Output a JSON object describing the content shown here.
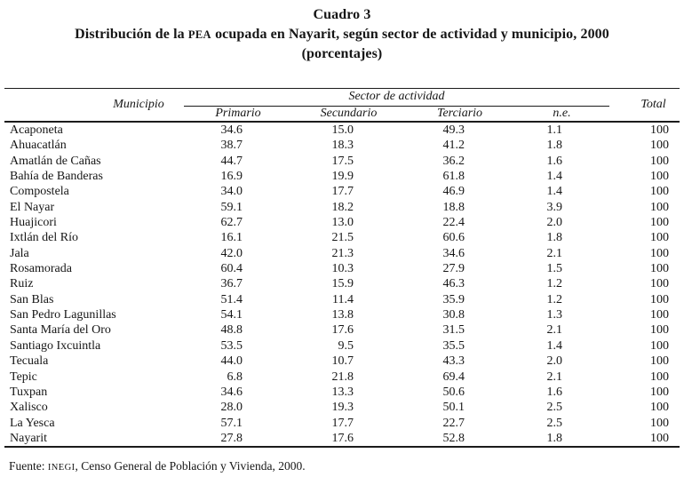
{
  "title": {
    "cuadro": "Cuadro 3",
    "line2_prefix": "Distribución de la ",
    "line2_acronym": "PEA",
    "line2_suffix": " ocupada en Nayarit, según sector de actividad y municipio, 2000",
    "subtitle": "(porcentajes)"
  },
  "table": {
    "columns": {
      "municipio": "Municipio",
      "sector_group": "Sector de actividad",
      "primario": "Primario",
      "secundario": "Secundario",
      "terciario": "Terciario",
      "ne": "n.e.",
      "total": "Total"
    },
    "rows": [
      {
        "municipio": "Acaponeta",
        "primario": "34.6",
        "secundario": "15.0",
        "terciario": "49.3",
        "ne": "1.1",
        "total": "100"
      },
      {
        "municipio": "Ahuacatlán",
        "primario": "38.7",
        "secundario": "18.3",
        "terciario": "41.2",
        "ne": "1.8",
        "total": "100"
      },
      {
        "municipio": "Amatlán de Cañas",
        "primario": "44.7",
        "secundario": "17.5",
        "terciario": "36.2",
        "ne": "1.6",
        "total": "100"
      },
      {
        "municipio": "Bahía de Banderas",
        "primario": "16.9",
        "secundario": "19.9",
        "terciario": "61.8",
        "ne": "1.4",
        "total": "100"
      },
      {
        "municipio": "Compostela",
        "primario": "34.0",
        "secundario": "17.7",
        "terciario": "46.9",
        "ne": "1.4",
        "total": "100"
      },
      {
        "municipio": "El Nayar",
        "primario": "59.1",
        "secundario": "18.2",
        "terciario": "18.8",
        "ne": "3.9",
        "total": "100"
      },
      {
        "municipio": "Huajicori",
        "primario": "62.7",
        "secundario": "13.0",
        "terciario": "22.4",
        "ne": "2.0",
        "total": "100"
      },
      {
        "municipio": "Ixtlán del Río",
        "primario": "16.1",
        "secundario": "21.5",
        "terciario": "60.6",
        "ne": "1.8",
        "total": "100"
      },
      {
        "municipio": "Jala",
        "primario": "42.0",
        "secundario": "21.3",
        "terciario": "34.6",
        "ne": "2.1",
        "total": "100"
      },
      {
        "municipio": "Rosamorada",
        "primario": "60.4",
        "secundario": "10.3",
        "terciario": "27.9",
        "ne": "1.5",
        "total": "100"
      },
      {
        "municipio": "Ruiz",
        "primario": "36.7",
        "secundario": "15.9",
        "terciario": "46.3",
        "ne": "1.2",
        "total": "100"
      },
      {
        "municipio": "San Blas",
        "primario": "51.4",
        "secundario": "11.4",
        "terciario": "35.9",
        "ne": "1.2",
        "total": "100"
      },
      {
        "municipio": "San Pedro Lagunillas",
        "primario": "54.1",
        "secundario": "13.8",
        "terciario": "30.8",
        "ne": "1.3",
        "total": "100"
      },
      {
        "municipio": "Santa María del Oro",
        "primario": "48.8",
        "secundario": "17.6",
        "terciario": "31.5",
        "ne": "2.1",
        "total": "100"
      },
      {
        "municipio": "Santiago Ixcuintla",
        "primario": "53.5",
        "secundario": "9.5",
        "terciario": "35.5",
        "ne": "1.4",
        "total": "100"
      },
      {
        "municipio": "Tecuala",
        "primario": "44.0",
        "secundario": "10.7",
        "terciario": "43.3",
        "ne": "2.0",
        "total": "100"
      },
      {
        "municipio": "Tepic",
        "primario": "6.8",
        "secundario": "21.8",
        "terciario": "69.4",
        "ne": "2.1",
        "total": "100"
      },
      {
        "municipio": "Tuxpan",
        "primario": "34.6",
        "secundario": "13.3",
        "terciario": "50.6",
        "ne": "1.6",
        "total": "100"
      },
      {
        "municipio": "Xalisco",
        "primario": "28.0",
        "secundario": "19.3",
        "terciario": "50.1",
        "ne": "2.5",
        "total": "100"
      },
      {
        "municipio": "La Yesca",
        "primario": "57.1",
        "secundario": "17.7",
        "terciario": "22.7",
        "ne": "2.5",
        "total": "100"
      },
      {
        "municipio": "Nayarit",
        "primario": "27.8",
        "secundario": "17.6",
        "terciario": "52.8",
        "ne": "1.8",
        "total": "100"
      }
    ]
  },
  "footer": {
    "prefix": "Fuente: ",
    "acronym": "INEGI",
    "suffix": ", Censo General de Población y Vivienda, 2000."
  }
}
